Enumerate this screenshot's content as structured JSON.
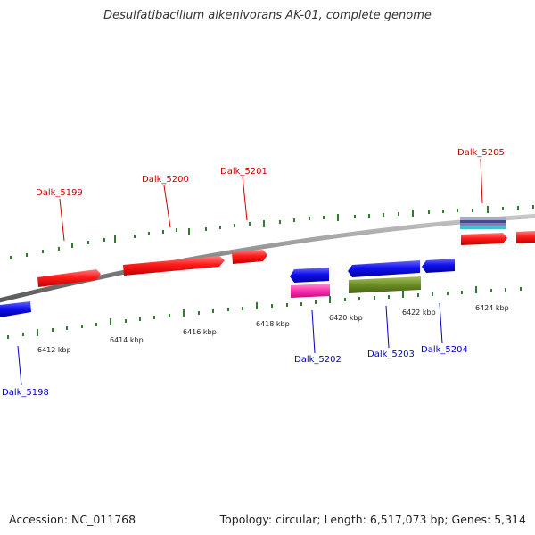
{
  "title": "Desulfatibacillum alkenivorans AK-01, complete genome",
  "footer": {
    "accession": "Accession: NC_011768",
    "summary": "Topology: circular; Length: 6,517,073 bp; Genes: 5,314"
  },
  "colors": {
    "forward_gene": "#ff2a2a",
    "reverse_gene": "#1a1aee",
    "label_forward": "#cc0000",
    "label_reverse": "#0000cc",
    "ticks": "#2e7d2e",
    "backbone": "#8a8a8a",
    "rna": "#ff3ab0",
    "repeat": "#6b8e23",
    "misc": "#40c0d0"
  },
  "scale": {
    "unit": "kbp",
    "labels": [
      "6412 kbp",
      "6414 kbp",
      "6416 kbp",
      "6418 kbp",
      "6420 kbp",
      "6422 kbp",
      "6424 kbp"
    ]
  },
  "genes_top": [
    "Dalk_5199",
    "Dalk_5200",
    "Dalk_5201",
    "Dalk_5205"
  ],
  "genes_bottom": [
    "Dalk_5198",
    "Dalk_5202",
    "Dalk_5203",
    "Dalk_5204"
  ]
}
